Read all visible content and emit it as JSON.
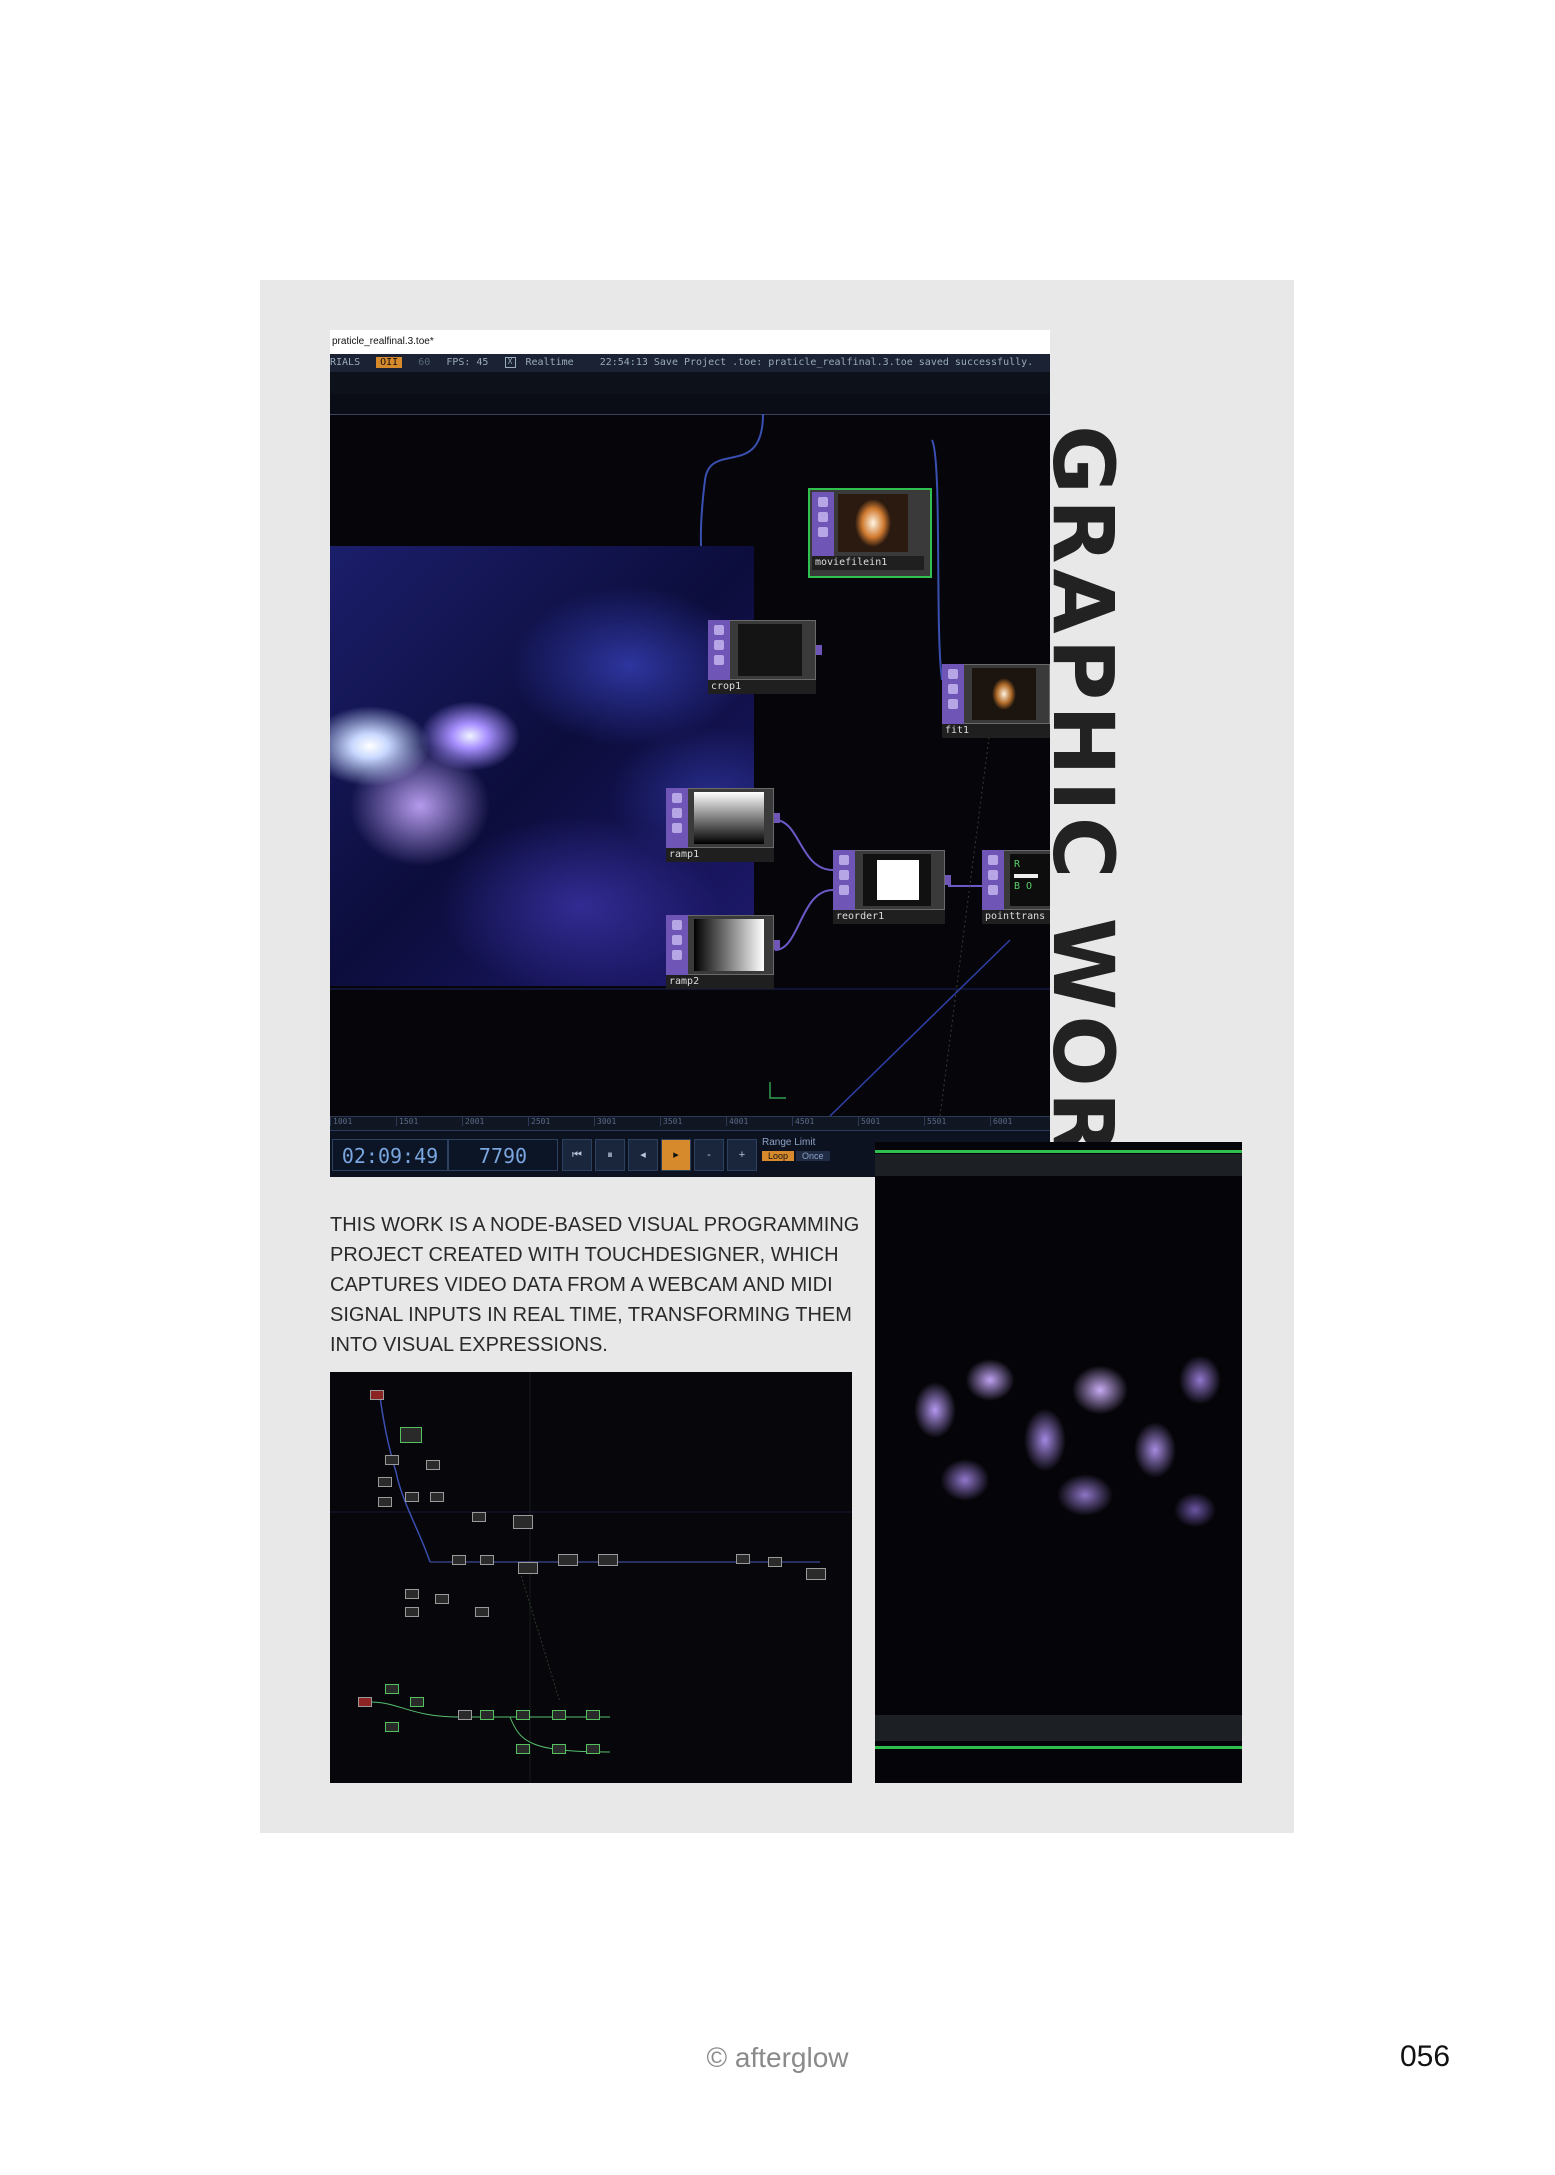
{
  "page": {
    "title": "GRAPHIC WORK",
    "description": "THIS WORK IS A NODE-BASED VISUAL PROGRAMMING PROJECT CREATED WITH TOUCHDESIGNER, WHICH CAPTURES VIDEO DATA FROM A WEBCAM AND MIDI SIGNAL INPUTS IN REAL TIME, TRANSFORMING THEM INTO VISUAL EXPRESSIONS.",
    "footer": "© afterglow",
    "page_number": "056"
  },
  "screenshot": {
    "window_title": "praticle_realfinal.3.toe*",
    "status": {
      "prefix": "RIALS",
      "op_badge": "OII",
      "target_fps": "60",
      "fps": "FPS:  45",
      "realtime_checkbox": "X",
      "realtime_label": "Realtime",
      "message": "22:54:13 Save Project .toe: praticle_realfinal.3.toe saved successfully."
    },
    "nodes": {
      "moviefilein1": "moviefilein1",
      "crop1": "crop1",
      "fit1": "fit1",
      "ramp1": "ramp1",
      "ramp2": "ramp2",
      "reorder1": "reorder1",
      "pointtrans": "pointtrans",
      "pointtrans_r": "R",
      "pointtrans_b": "B O"
    },
    "ruler_ticks": [
      "1001",
      "1501",
      "2001",
      "2501",
      "3001",
      "3501",
      "4001",
      "4501",
      "5001",
      "5501",
      "6001"
    ],
    "timeline": {
      "timecode": "02:09:49",
      "frame": "7790",
      "buttons": {
        "rewind": "⏮",
        "pause": "⏸",
        "back": "◂",
        "play": "▸",
        "minus": "-",
        "plus": "+"
      },
      "range_limit": "Range Limit",
      "loop": "Loop",
      "once": "Once"
    }
  },
  "colors": {
    "panel_bg": "#e8e8e8",
    "node_purple": "#6f55b5",
    "selection_green": "#30c050",
    "timeline_orange": "#d68a2c"
  }
}
